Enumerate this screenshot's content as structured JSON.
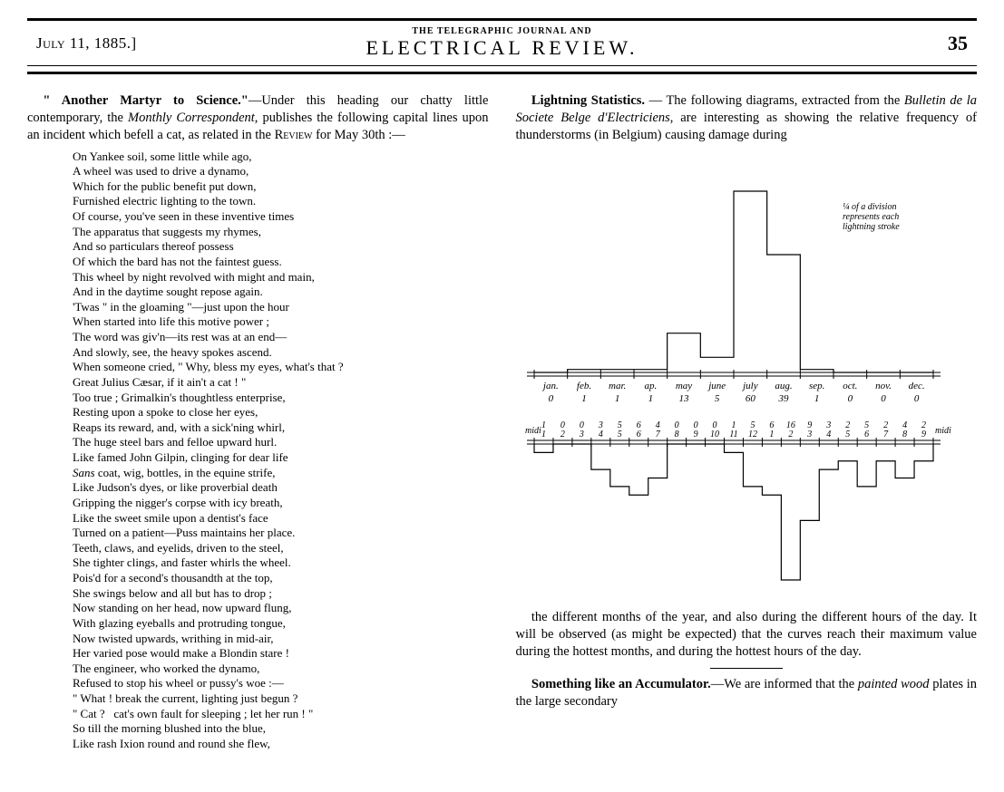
{
  "header": {
    "date": "July 11, 1885.]",
    "journal_sub": "THE TELEGRAPHIC JOURNAL AND",
    "journal_main": "ELECTRICAL  REVIEW.",
    "page": "35"
  },
  "left_column": {
    "lead_title": "\" Another Martyr to Science.\"",
    "lead_rest": "—Under this heading our chatty little contemporary, the ",
    "lead_italic": "Monthly Correspondent",
    "lead_rest2": ", publishes the following capital lines upon an incident which befell a cat, as related in the ",
    "lead_smallcaps": "Review",
    "lead_rest3": " for May 30th :—",
    "poem_lines": [
      "On Yankee soil, some little while ago,",
      "A wheel was used to drive a dynamo,",
      "Which for the public benefit put down,",
      "Furnished electric lighting to the town.",
      "Of course, you've seen in these inventive times",
      "The apparatus that suggests my rhymes,",
      "And so particulars thereof possess",
      "Of which the bard has not the faintest guess.",
      "This wheel by night revolved with might and main,",
      "And in the daytime sought repose again.",
      "'Twas \" in the gloaming \"—just upon the hour",
      "When started into life this motive power ;",
      "The word was giv'n—its rest was at an end—",
      "And slowly, see, the heavy spokes ascend.",
      "When someone cried, \" Why, bless my eyes, what's that ?",
      "Great Julius Cæsar, if it ain't a cat ! \"",
      "Too true ; Grimalkin's thoughtless enterprise,",
      "Resting upon a spoke to close her eyes,",
      "Reaps its reward, and, with a sick'ning whirl,",
      "The huge steel bars and felloe upward hurl.",
      "Like famed John Gilpin, clinging for dear life",
      "Sans coat, wig, bottles, in the equine strife,",
      "Like Judson's dyes, or like proverbial death",
      "Gripping the nigger's corpse with icy breath,",
      "Like the sweet smile upon a dentist's face",
      "Turned on a patient—Puss maintains her place.",
      "Teeth, claws, and eyelids, driven to the steel,",
      "She tighter clings, and faster whirls the wheel.",
      "Pois'd for a second's thousandth at the top,",
      "She swings below and all but has to drop ;",
      "Now standing on her head, now upward flung,",
      "With glazing eyeballs and protruding tongue,",
      "Now twisted upwards, writhing in mid-air,",
      "Her varied pose would make a Blondin stare !",
      "The engineer, who worked the dynamo,",
      "Refused to stop his wheel or pussy's woe :—",
      "\" What ! break the current, lighting just begun ?",
      "\" Cat ?   cat's own fault for sleeping ; let her run ! \"",
      "So till the morning blushed into the blue,",
      "Like rash Ixion round and round she flew,"
    ]
  },
  "right_column": {
    "p1_lead": "Lightning Statistics.",
    "p1_rest1": " — The following diagrams, extracted from the ",
    "p1_italic": "Bulletin de la Societe Belge d'Electriciens",
    "p1_rest2": ", are interesting as showing the relative frequency of thunderstorms (in Belgium) causing damage during",
    "chart_note_l1": "¼ of a division",
    "chart_note_l2": "represents each",
    "chart_note_l3": "lightning stroke",
    "months_chart": {
      "type": "bar",
      "labels": [
        "jan.",
        "feb.",
        "mar.",
        "ap.",
        "may",
        "june",
        "july",
        "aug.",
        "sep.",
        "oct.",
        "nov.",
        "dec."
      ],
      "values": [
        0,
        1,
        1,
        1,
        13,
        5,
        60,
        39,
        1,
        0,
        0,
        0
      ],
      "max_val": 60,
      "bar_color": "#000000",
      "line_width": 1.2,
      "tick_count": 12,
      "label_fontsize": 11,
      "value_fontsize": 11
    },
    "hours_chart": {
      "type": "bar-inverted",
      "top_values": [
        1,
        0,
        0,
        3,
        5,
        6,
        4,
        0,
        0,
        0,
        1,
        5,
        6,
        16,
        9,
        3,
        2,
        5,
        2,
        4,
        2
      ],
      "hour_labels": [
        "1",
        "2",
        "3",
        "4",
        "5",
        "6",
        "7",
        "8",
        "9",
        "10",
        "11",
        "12",
        "1",
        "2",
        "3",
        "4",
        "5",
        "6",
        "7",
        "8",
        "9"
      ],
      "max_val": 16,
      "bar_color": "#000000",
      "line_width": 1.2,
      "tick_count": 24,
      "label_fontsize": 10,
      "value_fontsize": 10,
      "midi_label": "midi"
    },
    "p2": "the different months of the year, and also during the different hours of the day.  It will be observed (as might be expected) that the curves reach their maximum value during the hottest months, and during the hottest hours of the day.",
    "p3_lead": "Something like an Accumulator.",
    "p3_rest1": "—We are informed that the ",
    "p3_italic": "painted wood",
    "p3_rest2": " plates in the large secondary"
  },
  "colors": {
    "text": "#000000",
    "bg": "#ffffff",
    "rule": "#000000"
  }
}
